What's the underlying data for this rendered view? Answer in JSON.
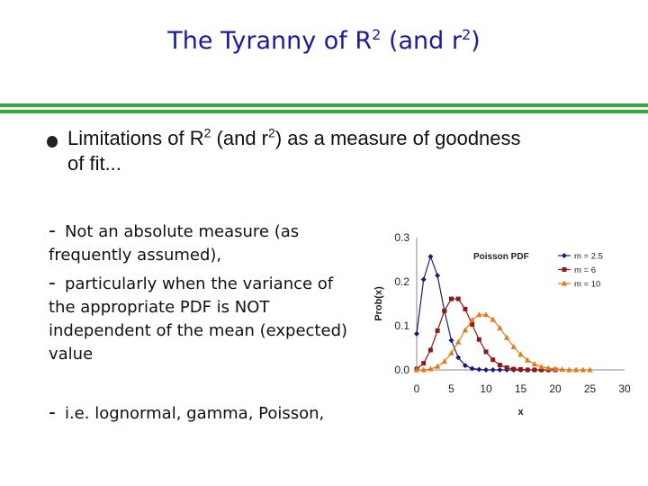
{
  "slide": {
    "title": "The Tyranny of R",
    "title_sup": "2",
    "title_mid": " (and r",
    "title_sup2": "2",
    "title_end": ")",
    "bullet": {
      "part1": "Limitations of R",
      "sup1": "2",
      "part2": " (and r",
      "sup2": "2",
      "part3": ") as a measure of goodness of fit..."
    },
    "subs": [
      {
        "dash": "-",
        "text": "Not an absolute measure (as frequently assumed),"
      },
      {
        "dash": "-",
        "text": "particularly when the variance of the appropriate PDF is NOT independent of the mean (expected) value"
      },
      {
        "dash": "-",
        "text": "i.e. lognormal, gamma, Poisson,"
      }
    ],
    "colors": {
      "title": "#1a1aa0",
      "rule": "#3aa53a"
    }
  },
  "chart_data": {
    "type": "line",
    "title": "Poisson PDF",
    "xlabel": "x",
    "ylabel": "Prob(x)",
    "xlim": [
      0,
      30
    ],
    "ylim": [
      0,
      0.3
    ],
    "xticks": [
      "0",
      "5",
      "10",
      "15",
      "20",
      "25",
      "30"
    ],
    "yticks": [
      "0.0",
      "0.1",
      "0.2",
      "0.3"
    ],
    "legend_position": "top-right",
    "series": [
      {
        "name": "m = 2.5",
        "color": "#1a1a7a",
        "marker": "diamond",
        "x": [
          0,
          1,
          2,
          3,
          4,
          5,
          6,
          7,
          8,
          9,
          10,
          11,
          12,
          13,
          14,
          15,
          16,
          17,
          18,
          19,
          20
        ],
        "y": [
          0.082,
          0.205,
          0.257,
          0.214,
          0.134,
          0.067,
          0.028,
          0.01,
          0.003,
          0.001,
          0.0,
          0.0,
          0.0,
          0.0,
          0.0,
          0.0,
          0.0,
          0.0,
          0.0,
          0.0,
          0.0
        ]
      },
      {
        "name": "m = 6",
        "color": "#8b1a1a",
        "marker": "square",
        "x": [
          0,
          1,
          2,
          3,
          4,
          5,
          6,
          7,
          8,
          9,
          10,
          11,
          12,
          13,
          14,
          15,
          16,
          17,
          18,
          19,
          20
        ],
        "y": [
          0.002,
          0.015,
          0.045,
          0.089,
          0.134,
          0.161,
          0.161,
          0.138,
          0.103,
          0.069,
          0.041,
          0.023,
          0.011,
          0.005,
          0.002,
          0.001,
          0.0,
          0.0,
          0.0,
          0.0,
          0.0
        ]
      },
      {
        "name": "m = 10",
        "color": "#e07b1a",
        "marker": "triangle",
        "x": [
          0,
          1,
          2,
          3,
          4,
          5,
          6,
          7,
          8,
          9,
          10,
          11,
          12,
          13,
          14,
          15,
          16,
          17,
          18,
          19,
          20,
          21,
          22,
          23,
          24,
          25
        ],
        "y": [
          0.0,
          0.0,
          0.002,
          0.008,
          0.019,
          0.038,
          0.063,
          0.09,
          0.113,
          0.125,
          0.125,
          0.114,
          0.095,
          0.073,
          0.052,
          0.035,
          0.022,
          0.013,
          0.007,
          0.004,
          0.002,
          0.001,
          0.0,
          0.0,
          0.0,
          0.0
        ]
      }
    ]
  }
}
